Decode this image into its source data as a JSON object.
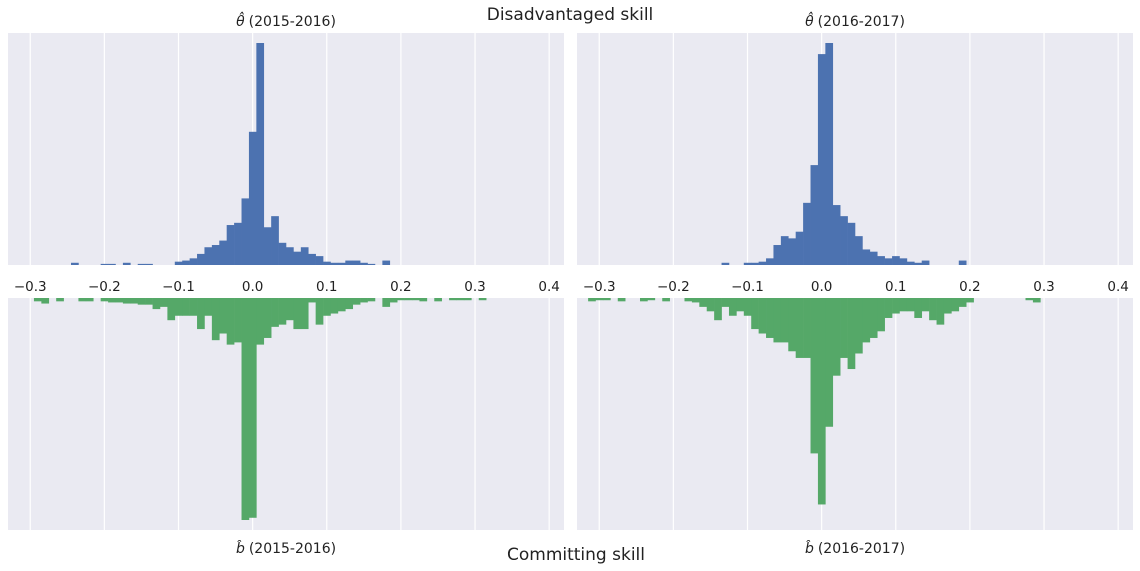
{
  "figure": {
    "top_title": "Disadvantaged skill",
    "bottom_title": "Committing skill"
  },
  "chart_data": [
    {
      "type": "bar",
      "panel": "top-left",
      "title_symbol": "θ̂",
      "title_years": "(2015-2016)",
      "color": "#4C72B0",
      "orientation": "up",
      "bin_width": 0.01,
      "xlim": [
        -0.33,
        0.42
      ],
      "xticks": [
        -0.3,
        -0.2,
        -0.1,
        0.0,
        0.1,
        0.2,
        0.3,
        0.4
      ],
      "xtick_labels": [
        "−0.3",
        "−0.2",
        "−0.1",
        "0.0",
        "0.1",
        "0.2",
        "0.3",
        "0.4"
      ],
      "ylim": [
        0,
        100
      ],
      "grid": true,
      "bins": [
        {
          "x": -0.24,
          "v": 1
        },
        {
          "x": -0.2,
          "v": 0.5
        },
        {
          "x": -0.19,
          "v": 0.5
        },
        {
          "x": -0.17,
          "v": 1
        },
        {
          "x": -0.15,
          "v": 0.5
        },
        {
          "x": -0.14,
          "v": 0.5
        },
        {
          "x": -0.1,
          "v": 1.5
        },
        {
          "x": -0.09,
          "v": 2
        },
        {
          "x": -0.08,
          "v": 3
        },
        {
          "x": -0.07,
          "v": 5
        },
        {
          "x": -0.06,
          "v": 8
        },
        {
          "x": -0.05,
          "v": 9
        },
        {
          "x": -0.04,
          "v": 11
        },
        {
          "x": -0.03,
          "v": 18
        },
        {
          "x": -0.02,
          "v": 19
        },
        {
          "x": -0.01,
          "v": 30
        },
        {
          "x": 0.0,
          "v": 60
        },
        {
          "x": 0.01,
          "v": 100
        },
        {
          "x": 0.02,
          "v": 17
        },
        {
          "x": 0.03,
          "v": 22
        },
        {
          "x": 0.04,
          "v": 10
        },
        {
          "x": 0.05,
          "v": 8
        },
        {
          "x": 0.06,
          "v": 6
        },
        {
          "x": 0.07,
          "v": 8
        },
        {
          "x": 0.08,
          "v": 5
        },
        {
          "x": 0.09,
          "v": 4
        },
        {
          "x": 0.1,
          "v": 1.5
        },
        {
          "x": 0.11,
          "v": 1
        },
        {
          "x": 0.12,
          "v": 1
        },
        {
          "x": 0.13,
          "v": 2
        },
        {
          "x": 0.14,
          "v": 2
        },
        {
          "x": 0.15,
          "v": 1
        },
        {
          "x": 0.16,
          "v": 0.5
        },
        {
          "x": 0.18,
          "v": 2
        }
      ]
    },
    {
      "type": "bar",
      "panel": "top-right",
      "title_symbol": "θ̂",
      "title_years": "(2016-2017)",
      "color": "#4C72B0",
      "orientation": "up",
      "bin_width": 0.01,
      "xlim": [
        -0.33,
        0.42
      ],
      "xticks": [
        -0.3,
        -0.2,
        -0.1,
        0.0,
        0.1,
        0.2,
        0.3,
        0.4
      ],
      "xtick_labels": [
        "−0.3",
        "−0.2",
        "−0.1",
        "0.0",
        "0.1",
        "0.2",
        "0.3",
        "0.4"
      ],
      "ylim": [
        0,
        100
      ],
      "grid": true,
      "bins": [
        {
          "x": -0.13,
          "v": 1
        },
        {
          "x": -0.1,
          "v": 1
        },
        {
          "x": -0.09,
          "v": 1
        },
        {
          "x": -0.08,
          "v": 1.5
        },
        {
          "x": -0.07,
          "v": 3
        },
        {
          "x": -0.06,
          "v": 9
        },
        {
          "x": -0.05,
          "v": 13
        },
        {
          "x": -0.04,
          "v": 12
        },
        {
          "x": -0.03,
          "v": 15
        },
        {
          "x": -0.02,
          "v": 28
        },
        {
          "x": -0.01,
          "v": 45
        },
        {
          "x": 0.0,
          "v": 95
        },
        {
          "x": 0.01,
          "v": 100
        },
        {
          "x": 0.02,
          "v": 27
        },
        {
          "x": 0.03,
          "v": 22
        },
        {
          "x": 0.04,
          "v": 19
        },
        {
          "x": 0.05,
          "v": 13
        },
        {
          "x": 0.06,
          "v": 7
        },
        {
          "x": 0.07,
          "v": 6
        },
        {
          "x": 0.08,
          "v": 4
        },
        {
          "x": 0.09,
          "v": 3
        },
        {
          "x": 0.1,
          "v": 4
        },
        {
          "x": 0.11,
          "v": 3
        },
        {
          "x": 0.12,
          "v": 1.5
        },
        {
          "x": 0.13,
          "v": 1
        },
        {
          "x": 0.14,
          "v": 2
        },
        {
          "x": 0.19,
          "v": 2
        }
      ]
    },
    {
      "type": "bar",
      "panel": "bottom-left",
      "title_symbol": "b̂",
      "title_years": "(2015-2016)",
      "color": "#55A868",
      "orientation": "down",
      "bin_width": 0.01,
      "xlim": [
        -0.33,
        0.42
      ],
      "ylim": [
        0,
        100
      ],
      "grid": true,
      "bins": [
        {
          "x": -0.29,
          "v": 1.5
        },
        {
          "x": -0.28,
          "v": 2.5
        },
        {
          "x": -0.26,
          "v": 1.5
        },
        {
          "x": -0.23,
          "v": 1.5
        },
        {
          "x": -0.22,
          "v": 1.5
        },
        {
          "x": -0.2,
          "v": 1.5
        },
        {
          "x": -0.19,
          "v": 2
        },
        {
          "x": -0.18,
          "v": 2
        },
        {
          "x": -0.17,
          "v": 2.5
        },
        {
          "x": -0.16,
          "v": 2.5
        },
        {
          "x": -0.15,
          "v": 3
        },
        {
          "x": -0.14,
          "v": 3
        },
        {
          "x": -0.13,
          "v": 5
        },
        {
          "x": -0.12,
          "v": 4
        },
        {
          "x": -0.11,
          "v": 10
        },
        {
          "x": -0.1,
          "v": 8
        },
        {
          "x": -0.09,
          "v": 8
        },
        {
          "x": -0.08,
          "v": 8
        },
        {
          "x": -0.07,
          "v": 14
        },
        {
          "x": -0.06,
          "v": 8
        },
        {
          "x": -0.05,
          "v": 19
        },
        {
          "x": -0.04,
          "v": 16
        },
        {
          "x": -0.03,
          "v": 21
        },
        {
          "x": -0.02,
          "v": 20
        },
        {
          "x": -0.01,
          "v": 100
        },
        {
          "x": 0.0,
          "v": 99
        },
        {
          "x": 0.01,
          "v": 21
        },
        {
          "x": 0.02,
          "v": 18
        },
        {
          "x": 0.03,
          "v": 13
        },
        {
          "x": 0.04,
          "v": 12
        },
        {
          "x": 0.05,
          "v": 10
        },
        {
          "x": 0.06,
          "v": 14
        },
        {
          "x": 0.07,
          "v": 14
        },
        {
          "x": 0.08,
          "v": 2
        },
        {
          "x": 0.09,
          "v": 12
        },
        {
          "x": 0.1,
          "v": 8
        },
        {
          "x": 0.11,
          "v": 7
        },
        {
          "x": 0.12,
          "v": 6
        },
        {
          "x": 0.13,
          "v": 5
        },
        {
          "x": 0.14,
          "v": 3
        },
        {
          "x": 0.15,
          "v": 2
        },
        {
          "x": 0.16,
          "v": 1.5
        },
        {
          "x": 0.18,
          "v": 4
        },
        {
          "x": 0.19,
          "v": 2
        },
        {
          "x": 0.2,
          "v": 1
        },
        {
          "x": 0.21,
          "v": 1
        },
        {
          "x": 0.22,
          "v": 1
        },
        {
          "x": 0.23,
          "v": 1.5
        },
        {
          "x": 0.25,
          "v": 1.5
        },
        {
          "x": 0.27,
          "v": 1
        },
        {
          "x": 0.28,
          "v": 1
        },
        {
          "x": 0.29,
          "v": 1
        },
        {
          "x": 0.31,
          "v": 1
        }
      ]
    },
    {
      "type": "bar",
      "panel": "bottom-right",
      "title_symbol": "b̂",
      "title_years": "(2016-2017)",
      "color": "#55A868",
      "orientation": "down",
      "bin_width": 0.01,
      "xlim": [
        -0.33,
        0.42
      ],
      "ylim": [
        0,
        100
      ],
      "grid": true,
      "bins": [
        {
          "x": -0.31,
          "v": 1.5
        },
        {
          "x": -0.3,
          "v": 1
        },
        {
          "x": -0.29,
          "v": 1
        },
        {
          "x": -0.27,
          "v": 1.5
        },
        {
          "x": -0.24,
          "v": 1.5
        },
        {
          "x": -0.23,
          "v": 1
        },
        {
          "x": -0.21,
          "v": 1.5
        },
        {
          "x": -0.18,
          "v": 1.5
        },
        {
          "x": -0.17,
          "v": 2
        },
        {
          "x": -0.16,
          "v": 4
        },
        {
          "x": -0.15,
          "v": 6
        },
        {
          "x": -0.14,
          "v": 10
        },
        {
          "x": -0.13,
          "v": 4
        },
        {
          "x": -0.12,
          "v": 8
        },
        {
          "x": -0.11,
          "v": 6
        },
        {
          "x": -0.1,
          "v": 8
        },
        {
          "x": -0.09,
          "v": 14
        },
        {
          "x": -0.08,
          "v": 16
        },
        {
          "x": -0.07,
          "v": 18
        },
        {
          "x": -0.06,
          "v": 20
        },
        {
          "x": -0.05,
          "v": 20
        },
        {
          "x": -0.04,
          "v": 24
        },
        {
          "x": -0.03,
          "v": 27
        },
        {
          "x": -0.02,
          "v": 27
        },
        {
          "x": -0.01,
          "v": 70
        },
        {
          "x": 0.0,
          "v": 93
        },
        {
          "x": 0.01,
          "v": 58
        },
        {
          "x": 0.02,
          "v": 35
        },
        {
          "x": 0.03,
          "v": 27
        },
        {
          "x": 0.04,
          "v": 32
        },
        {
          "x": 0.05,
          "v": 25
        },
        {
          "x": 0.06,
          "v": 20
        },
        {
          "x": 0.07,
          "v": 18
        },
        {
          "x": 0.08,
          "v": 15
        },
        {
          "x": 0.09,
          "v": 9
        },
        {
          "x": 0.1,
          "v": 7
        },
        {
          "x": 0.11,
          "v": 6
        },
        {
          "x": 0.12,
          "v": 6
        },
        {
          "x": 0.13,
          "v": 9
        },
        {
          "x": 0.14,
          "v": 6
        },
        {
          "x": 0.15,
          "v": 10
        },
        {
          "x": 0.16,
          "v": 12
        },
        {
          "x": 0.17,
          "v": 7
        },
        {
          "x": 0.18,
          "v": 6
        },
        {
          "x": 0.19,
          "v": 4
        },
        {
          "x": 0.2,
          "v": 2
        },
        {
          "x": 0.28,
          "v": 1
        },
        {
          "x": 0.29,
          "v": 2
        }
      ]
    }
  ]
}
